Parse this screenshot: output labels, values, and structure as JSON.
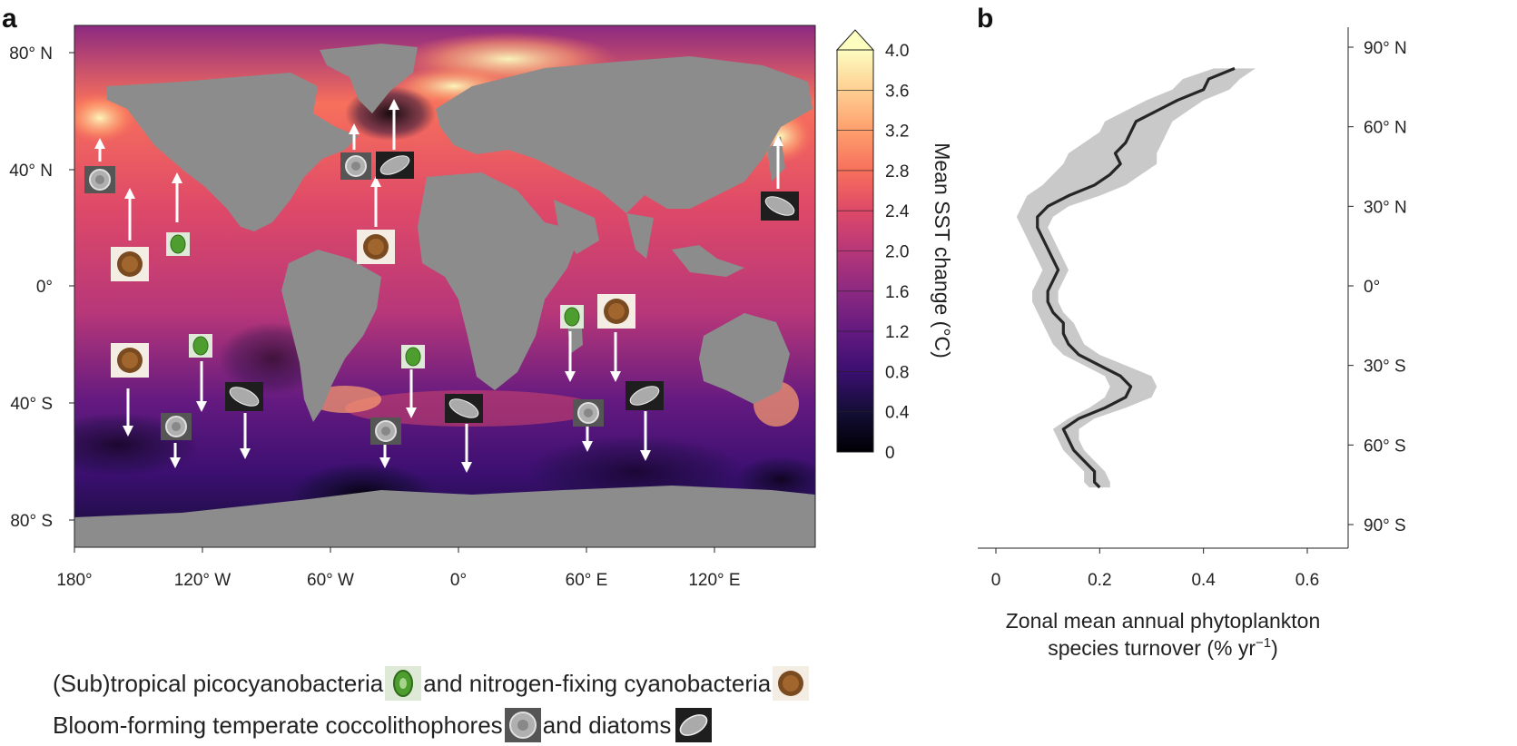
{
  "panel_a": {
    "letter": "a",
    "colorbar_title": "Mean SST change (°C)",
    "colorbar_ticks": [
      "0",
      "0.4",
      "0.8",
      "1.2",
      "1.6",
      "2.0",
      "2.4",
      "2.8",
      "3.2",
      "3.6",
      "4.0"
    ],
    "lat_ticks": [
      "80° N",
      "40° N",
      "0°",
      "40° S",
      "80° S"
    ],
    "lon_ticks": [
      "180°",
      "120° W",
      "60° W",
      "0°",
      "60° E",
      "120° E"
    ],
    "land_color": "#8c8c8c",
    "colormap": [
      "#000004",
      "#140e36",
      "#3b0f70",
      "#641a80",
      "#8c2981",
      "#b73779",
      "#de4968",
      "#f7705c",
      "#fe9f6d",
      "#fecf92",
      "#fcfdbf"
    ]
  },
  "panel_b": {
    "letter": "b",
    "xlabel_line1": "Zonal mean annual phytoplankton",
    "xlabel_line2": "species turnover (% yr",
    "xlabel_sup": "−1",
    "xlabel_end": ")",
    "x_ticks": [
      "0",
      "0.2",
      "0.4",
      "0.6"
    ],
    "y_ticks": [
      "90° N",
      "60° N",
      "30° N",
      "0°",
      "30° S",
      "60° S",
      "90° S"
    ]
  },
  "chart_data": {
    "type": "line",
    "xlabel": "Zonal mean annual phytoplankton species turnover (% yr−1)",
    "ylabel": "",
    "xlim": [
      0,
      0.6
    ],
    "ylim": [
      -90,
      90
    ],
    "series": [
      {
        "latitude": [
          82,
          78,
          74,
          70,
          66,
          62,
          58,
          54,
          50,
          46,
          42,
          38,
          34,
          30,
          26,
          22,
          18,
          14,
          10,
          6,
          2,
          -2,
          -6,
          -10,
          -14,
          -18,
          -22,
          -26,
          -30,
          -34,
          -38,
          -42,
          -46,
          -50,
          -54,
          -58,
          -62,
          -66,
          -70,
          -74,
          -76
        ],
        "turnover": [
          0.46,
          0.41,
          0.4,
          0.35,
          0.31,
          0.27,
          0.26,
          0.25,
          0.23,
          0.24,
          0.22,
          0.19,
          0.14,
          0.1,
          0.08,
          0.08,
          0.09,
          0.1,
          0.11,
          0.12,
          0.11,
          0.1,
          0.1,
          0.11,
          0.13,
          0.13,
          0.14,
          0.16,
          0.2,
          0.24,
          0.26,
          0.25,
          0.21,
          0.16,
          0.13,
          0.14,
          0.15,
          0.17,
          0.19,
          0.19,
          0.2
        ],
        "band_low": [
          0.42,
          0.36,
          0.34,
          0.29,
          0.25,
          0.21,
          0.2,
          0.17,
          0.14,
          0.13,
          0.11,
          0.09,
          0.06,
          0.05,
          0.04,
          0.05,
          0.06,
          0.07,
          0.08,
          0.09,
          0.08,
          0.07,
          0.07,
          0.08,
          0.09,
          0.1,
          0.11,
          0.13,
          0.17,
          0.21,
          0.22,
          0.21,
          0.18,
          0.14,
          0.11,
          0.12,
          0.13,
          0.15,
          0.17,
          0.17,
          0.18
        ],
        "band_high": [
          0.5,
          0.47,
          0.45,
          0.4,
          0.37,
          0.34,
          0.33,
          0.32,
          0.31,
          0.31,
          0.28,
          0.25,
          0.2,
          0.14,
          0.11,
          0.1,
          0.11,
          0.12,
          0.13,
          0.14,
          0.13,
          0.12,
          0.12,
          0.13,
          0.15,
          0.16,
          0.17,
          0.2,
          0.25,
          0.3,
          0.31,
          0.3,
          0.25,
          0.19,
          0.16,
          0.16,
          0.17,
          0.19,
          0.21,
          0.22,
          0.22
        ]
      }
    ]
  },
  "legend": {
    "line1_a": "(Sub)tropical picocyanobacteria",
    "line1_b": "and nitrogen-fixing cyanobacteria",
    "line2_a": "Bloom-forming temperate coccolithophores",
    "line2_b": "and diatoms"
  },
  "taxa_icons": [
    {
      "taxon": "picocyanobacteria",
      "icon": "green-cell-icon"
    },
    {
      "taxon": "nitrogen-fixing cyanobacteria",
      "icon": "brown-colony-icon"
    },
    {
      "taxon": "coccolithophores",
      "icon": "coccolith-icon"
    },
    {
      "taxon": "diatoms",
      "icon": "diatom-icon"
    }
  ]
}
